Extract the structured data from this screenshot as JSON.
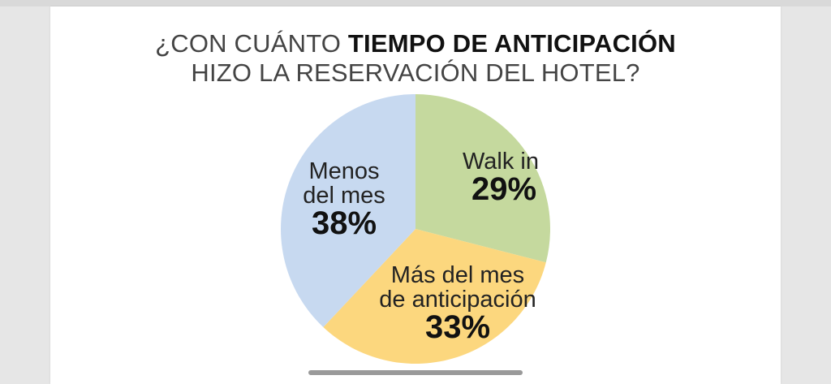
{
  "title": {
    "prefix": "¿CON CUÁNTO ",
    "emphasis": "TIEMPO DE ANTICIPACIÓN",
    "line2": "HIZO LA RESERVACIÓN DEL HOTEL?"
  },
  "chart_data": {
    "type": "pie",
    "title": "¿CON CUÁNTO TIEMPO DE ANTICIPACIÓN HIZO LA RESERVACIÓN DEL HOTEL?",
    "slices": [
      {
        "label_lines": [
          "Walk in"
        ],
        "value": 29,
        "display": "29%",
        "color": "#c5d99e"
      },
      {
        "label_lines": [
          "Más del mes",
          "de anticipación"
        ],
        "value": 33,
        "display": "33%",
        "color": "#fcd77e"
      },
      {
        "label_lines": [
          "Menos",
          "del mes"
        ],
        "value": 38,
        "display": "38%",
        "color": "#c7d9f0"
      }
    ]
  }
}
